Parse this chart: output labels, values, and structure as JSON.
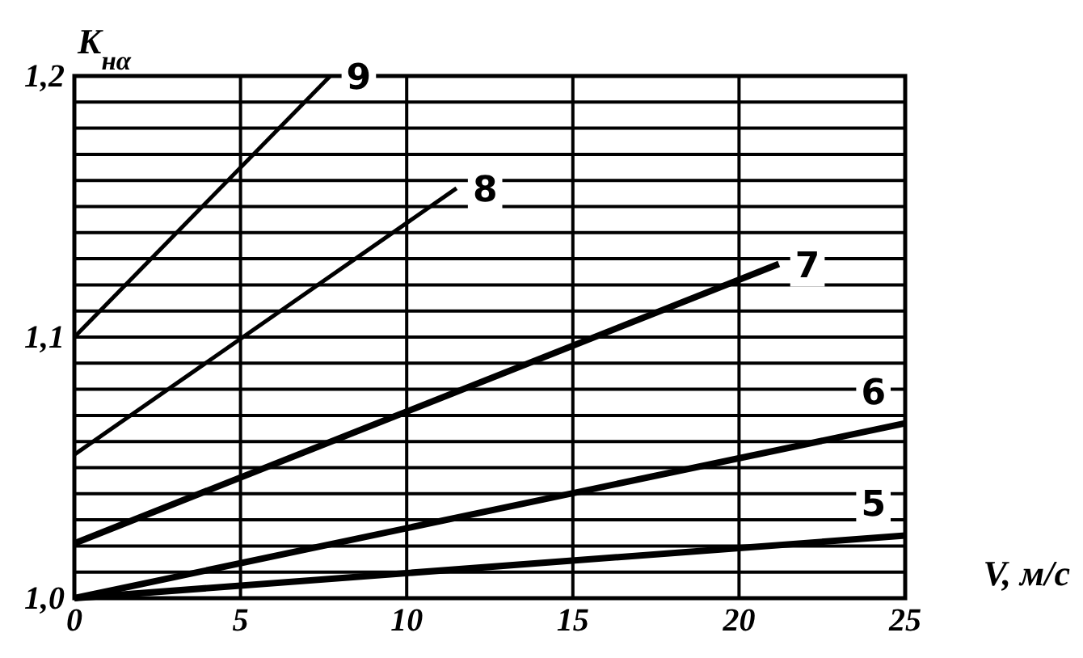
{
  "chart_data": {
    "type": "line",
    "xlabel": "V, м/с",
    "ylabel": "K$_{нα}$",
    "xlim": [
      0,
      25
    ],
    "ylim": [
      1.0,
      1.2
    ],
    "xticks": [
      0,
      5,
      10,
      15,
      20,
      25
    ],
    "yticks": [
      {
        "value": 1.0,
        "label": "1,0"
      },
      {
        "value": 1.01,
        "label": null
      },
      {
        "value": 1.02,
        "label": null
      },
      {
        "value": 1.03,
        "label": null
      },
      {
        "value": 1.04,
        "label": null
      },
      {
        "value": 1.05,
        "label": null
      },
      {
        "value": 1.06,
        "label": null
      },
      {
        "value": 1.07,
        "label": null
      },
      {
        "value": 1.08,
        "label": null
      },
      {
        "value": 1.09,
        "label": null
      },
      {
        "value": 1.1,
        "label": "1,1"
      },
      {
        "value": 1.11,
        "label": null
      },
      {
        "value": 1.12,
        "label": null
      },
      {
        "value": 1.13,
        "label": null
      },
      {
        "value": 1.14,
        "label": null
      },
      {
        "value": 1.15,
        "label": null
      },
      {
        "value": 1.16,
        "label": null
      },
      {
        "value": 1.17,
        "label": null
      },
      {
        "value": 1.18,
        "label": null
      },
      {
        "value": 1.19,
        "label": null
      },
      {
        "value": 1.2,
        "label": "1,2"
      }
    ],
    "grid": true,
    "marker": "none",
    "line_style": "solid",
    "series": [
      {
        "name": "9",
        "color": "#000000",
        "x": [
          0,
          7.7
        ],
        "values": [
          1.1,
          1.2
        ]
      },
      {
        "name": "8",
        "color": "#000000",
        "x": [
          0,
          11.5
        ],
        "values": [
          1.055,
          1.157
        ]
      },
      {
        "name": "7",
        "color": "#000000",
        "x": [
          0,
          21.2
        ],
        "values": [
          1.021,
          1.128
        ]
      },
      {
        "name": "6",
        "color": "#000000",
        "x": [
          0,
          25
        ],
        "values": [
          1.0,
          1.067
        ]
      },
      {
        "name": "5",
        "color": "#000000",
        "x": [
          0,
          25
        ],
        "values": [
          1.0,
          1.024
        ]
      }
    ]
  }
}
